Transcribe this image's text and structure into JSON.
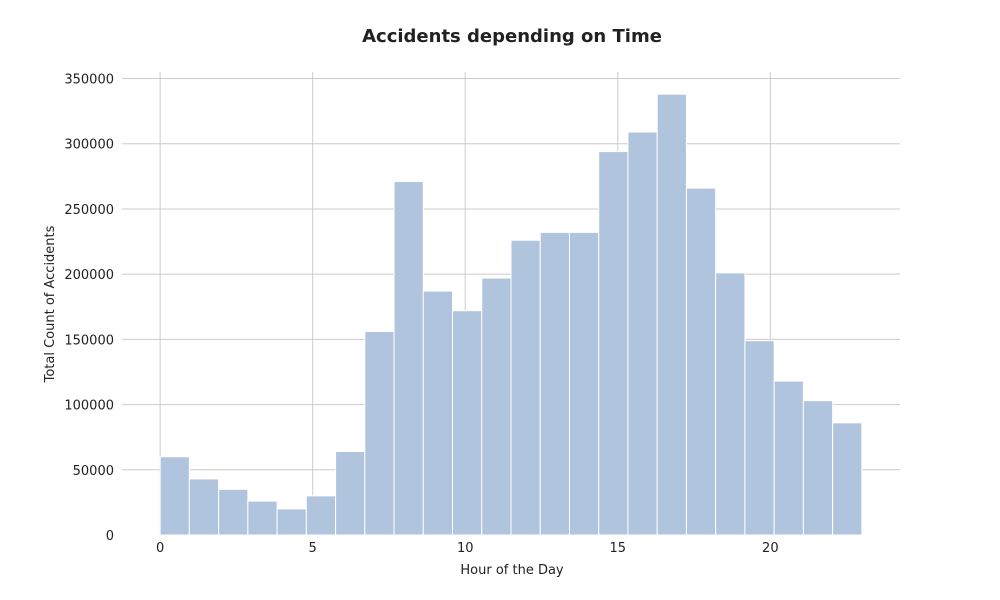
{
  "chart_data": {
    "type": "bar",
    "title": "Accidents depending on Time",
    "xlabel": "Hour of the Day",
    "ylabel": "Total Count of Accidents",
    "bin_edges": [
      0.0,
      0.9583,
      1.9167,
      2.875,
      3.8333,
      4.7917,
      5.75,
      6.7083,
      7.6667,
      8.625,
      9.5833,
      10.5417,
      11.5,
      12.4583,
      13.4167,
      14.375,
      15.3333,
      16.2917,
      17.25,
      18.2083,
      19.1667,
      20.125,
      21.0833,
      22.0417,
      23.0
    ],
    "values": [
      60000,
      43000,
      35000,
      26000,
      20000,
      30000,
      64000,
      156000,
      271000,
      187000,
      172000,
      197000,
      226000,
      232000,
      232000,
      294000,
      309000,
      338000,
      266000,
      201000,
      149000,
      118000,
      103000,
      86000
    ],
    "xlim": [
      -1.25,
      24.25
    ],
    "ylim": [
      0,
      355000
    ],
    "xticks": [
      0,
      5,
      10,
      15,
      20
    ],
    "xtick_labels": [
      "0",
      "5",
      "10",
      "15",
      "20"
    ],
    "yticks": [
      0,
      50000,
      100000,
      150000,
      200000,
      250000,
      300000,
      350000
    ],
    "ytick_labels": [
      "0",
      "50000",
      "100000",
      "150000",
      "200000",
      "250000",
      "300000",
      "350000"
    ],
    "grid": true,
    "bar_color": "#b0c4de"
  }
}
